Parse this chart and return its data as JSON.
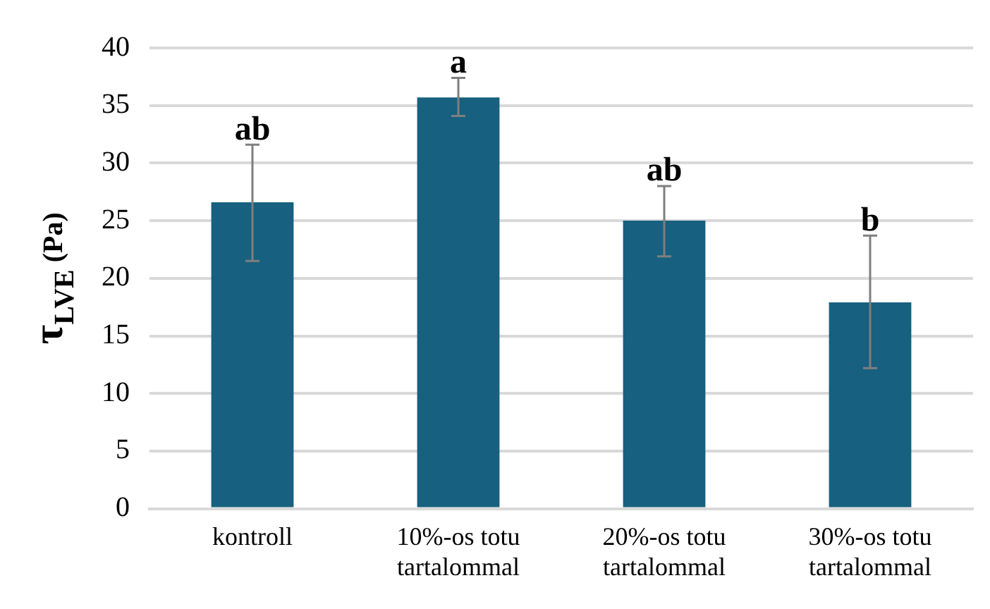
{
  "chart_data": {
    "type": "bar",
    "ylabel": "τ$_{LVE}$ (Pa)",
    "categories": [
      "kontroll",
      "10%-os totu\ntartalommal",
      "20%-os totu\ntartalommal",
      "30%-os totu\ntartalommal"
    ],
    "values": [
      26.6,
      35.7,
      25.0,
      17.9
    ],
    "color": "#17607f",
    "errors": [
      [
        21.5,
        31.6
      ],
      [
        34.1,
        37.4
      ],
      [
        21.9,
        28.0
      ],
      [
        12.2,
        23.7
      ]
    ],
    "ylim": [
      0,
      40
    ],
    "yticks": [
      0,
      5,
      10,
      15,
      20,
      25,
      30,
      35,
      40
    ],
    "grid": "y",
    "annotations": [
      {
        "text": "ab",
        "x": "kontroll",
        "y": 31.6
      },
      {
        "text": "a",
        "x": "10%-os totu\ntartalommal",
        "y": 37.4
      },
      {
        "text": "ab",
        "x": "20%-os totu\ntartalommal",
        "y": 28.0
      },
      {
        "text": "b",
        "x": "30%-os totu\ntartalommal",
        "y": 23.7
      }
    ]
  }
}
